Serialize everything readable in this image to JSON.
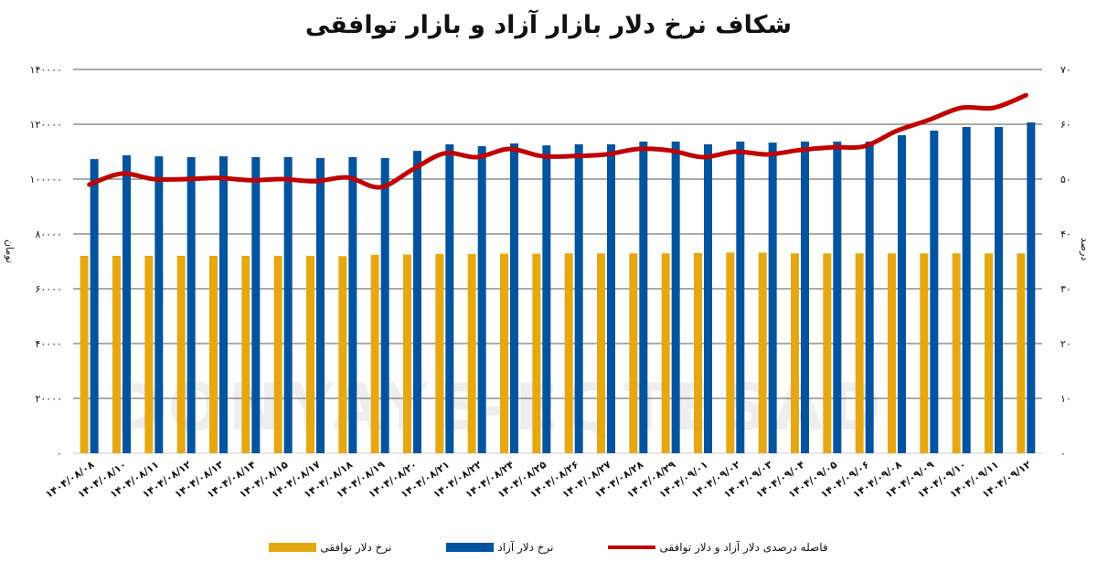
{
  "title": "شکاف نرخ دلار بازار آزاد و بازار توافقی",
  "watermark": "DONYAYE-EQTESAD",
  "legend": [
    {
      "key": "gap",
      "label": "فاصله درصدی دلار آزاد و دلار توافقی",
      "color": "#c00000",
      "kind": "line"
    },
    {
      "key": "free",
      "label": "نرخ دلار آزاد",
      "color": "#00549f",
      "kind": "bar"
    },
    {
      "key": "agreed",
      "label": "نرخ دلار توافقی",
      "color": "#e6a812",
      "kind": "bar"
    }
  ],
  "axes": {
    "left_title": "تومان",
    "right_title": "درصد",
    "left_ticks": [
      "۰",
      "۲۰۰۰۰",
      "۴۰۰۰۰",
      "۶۰۰۰۰",
      "۸۰۰۰۰",
      "۱۰۰۰۰۰",
      "۱۲۰۰۰۰",
      "۱۴۰۰۰۰"
    ],
    "right_ticks": [
      "۰",
      "۱۰",
      "۲۰",
      "۳۰",
      "۴۰",
      "۵۰",
      "۶۰",
      "۷۰"
    ]
  },
  "chart_data": {
    "type": "bar",
    "title": "شکاف نرخ دلار بازار آزاد و بازار توافقی",
    "xlabel": "",
    "ylabel": "تومان",
    "y2label": "درصد",
    "ylim": [
      0,
      140000
    ],
    "y2lim": [
      0,
      70
    ],
    "grid": true,
    "legend_position": "bottom",
    "categories": [
      "۱۴۰۴/۰۸/۰۸",
      "۱۴۰۴/۰۸/۱۰",
      "۱۴۰۴/۰۸/۱۱",
      "۱۴۰۴/۰۸/۱۲",
      "۱۴۰۴/۰۸/۱۳",
      "۱۴۰۴/۰۸/۱۴",
      "۱۴۰۴/۰۸/۱۵",
      "۱۴۰۴/۰۸/۱۷",
      "۱۴۰۴/۰۸/۱۸",
      "۱۴۰۴/۰۸/۱۹",
      "۱۴۰۴/۰۸/۲۰",
      "۱۴۰۴/۰۸/۲۱",
      "۱۴۰۴/۰۸/۲۲",
      "۱۴۰۴/۰۸/۲۴",
      "۱۴۰۴/۰۸/۲۵",
      "۱۴۰۴/۰۸/۲۶",
      "۱۴۰۴/۰۸/۲۷",
      "۱۴۰۴/۰۸/۲۸",
      "۱۴۰۴/۰۸/۲۹",
      "۱۴۰۴/۰۹/۰۱",
      "۱۴۰۴/۰۹/۰۲",
      "۱۴۰۴/۰۹/۰۳",
      "۱۴۰۴/۰۹/۰۴",
      "۱۴۰۴/۰۹/۰۵",
      "۱۴۰۴/۰۹/۰۶",
      "۱۴۰۴/۰۹/۰۸",
      "۱۴۰۴/۰۹/۰۹",
      "۱۴۰۴/۰۹/۱۰",
      "۱۴۰۴/۰۹/۱۱",
      "۱۴۰۴/۰۹/۱۲"
    ],
    "series": [
      {
        "name": "نرخ دلار توافقی",
        "type": "bar",
        "axis": "left",
        "color": "#e6a812",
        "values": [
          72000,
          72000,
          72000,
          72000,
          72000,
          72000,
          72000,
          72000,
          71900,
          72400,
          72500,
          72700,
          72700,
          72800,
          72800,
          72900,
          72900,
          72900,
          72900,
          73000,
          73200,
          73200,
          72900,
          72900,
          72900,
          72900,
          72900,
          72900,
          72900,
          72900
        ]
      },
      {
        "name": "نرخ دلار آزاد",
        "type": "bar",
        "axis": "left",
        "color": "#00549f",
        "values": [
          107300,
          108700,
          108300,
          108000,
          108300,
          108000,
          108000,
          107700,
          108000,
          107700,
          110300,
          112700,
          112000,
          113000,
          112300,
          112700,
          112700,
          113700,
          113700,
          112700,
          113700,
          113300,
          113700,
          113700,
          113700,
          116000,
          117700,
          119000,
          119000,
          120700
        ]
      },
      {
        "name": "فاصله درصدی دلار آزاد و دلار توافقی",
        "type": "line",
        "axis": "right",
        "color": "#c00000",
        "values": [
          49.0,
          51.0,
          50.0,
          50.0,
          50.2,
          49.8,
          50.0,
          49.6,
          50.3,
          48.5,
          51.7,
          54.7,
          54.0,
          55.5,
          54.2,
          54.2,
          54.5,
          55.5,
          55.2,
          54.0,
          55.0,
          54.5,
          55.3,
          55.8,
          56.0,
          58.8,
          60.8,
          63.0,
          63.0,
          65.3
        ]
      }
    ]
  }
}
